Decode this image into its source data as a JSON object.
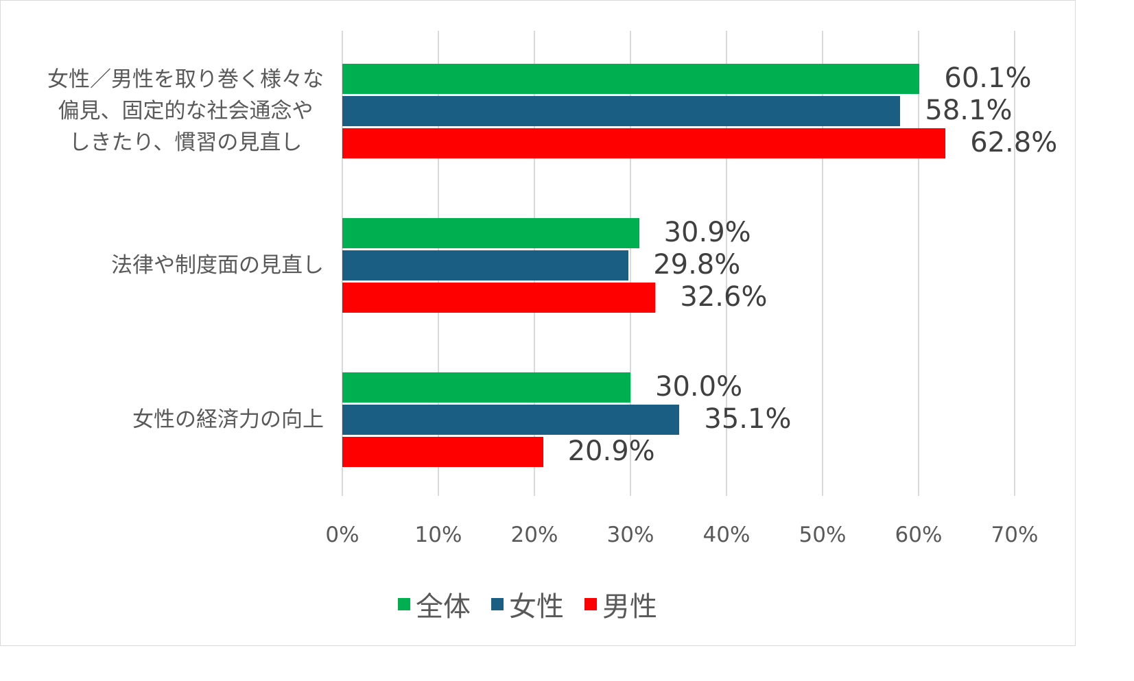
{
  "chart_data": {
    "type": "bar",
    "orientation": "horizontal",
    "title": "",
    "xlabel": "",
    "ylabel": "",
    "xlim": [
      0,
      70
    ],
    "x_ticks": [
      "0%",
      "10%",
      "20%",
      "30%",
      "40%",
      "50%",
      "60%",
      "70%"
    ],
    "grid": true,
    "legend_position": "bottom",
    "categories": [
      "女性／男性を取り巻く様々な偏見、固定的な社会通念やしきたり、慣習の見直し",
      "法律や制度面の見直し",
      "女性の経済力の向上"
    ],
    "category_lines": [
      [
        "女性／男性を取り巻く様々な",
        "偏見、固定的な社会通念や",
        "しきたり、慣習の見直し"
      ],
      [
        "法律や制度面の見直し"
      ],
      [
        "女性の経済力の向上"
      ]
    ],
    "series": [
      {
        "name": "全体",
        "color": "#00b050",
        "values": [
          60.1,
          30.9,
          30.0
        ],
        "labels": [
          "60.1%",
          "30.9%",
          "30.0%"
        ]
      },
      {
        "name": "女性",
        "color": "#1a5f83",
        "values": [
          58.1,
          29.8,
          35.1
        ],
        "labels": [
          "58.1%",
          "29.8%",
          "35.1%"
        ]
      },
      {
        "name": "男性",
        "color": "#ff0000",
        "values": [
          62.8,
          32.6,
          20.9
        ],
        "labels": [
          "62.8%",
          "32.6%",
          "20.9%"
        ]
      }
    ]
  },
  "legend": [
    {
      "label": "全体",
      "color": "#00b050"
    },
    {
      "label": "女性",
      "color": "#1a5f83"
    },
    {
      "label": "男性",
      "color": "#ff0000"
    }
  ]
}
